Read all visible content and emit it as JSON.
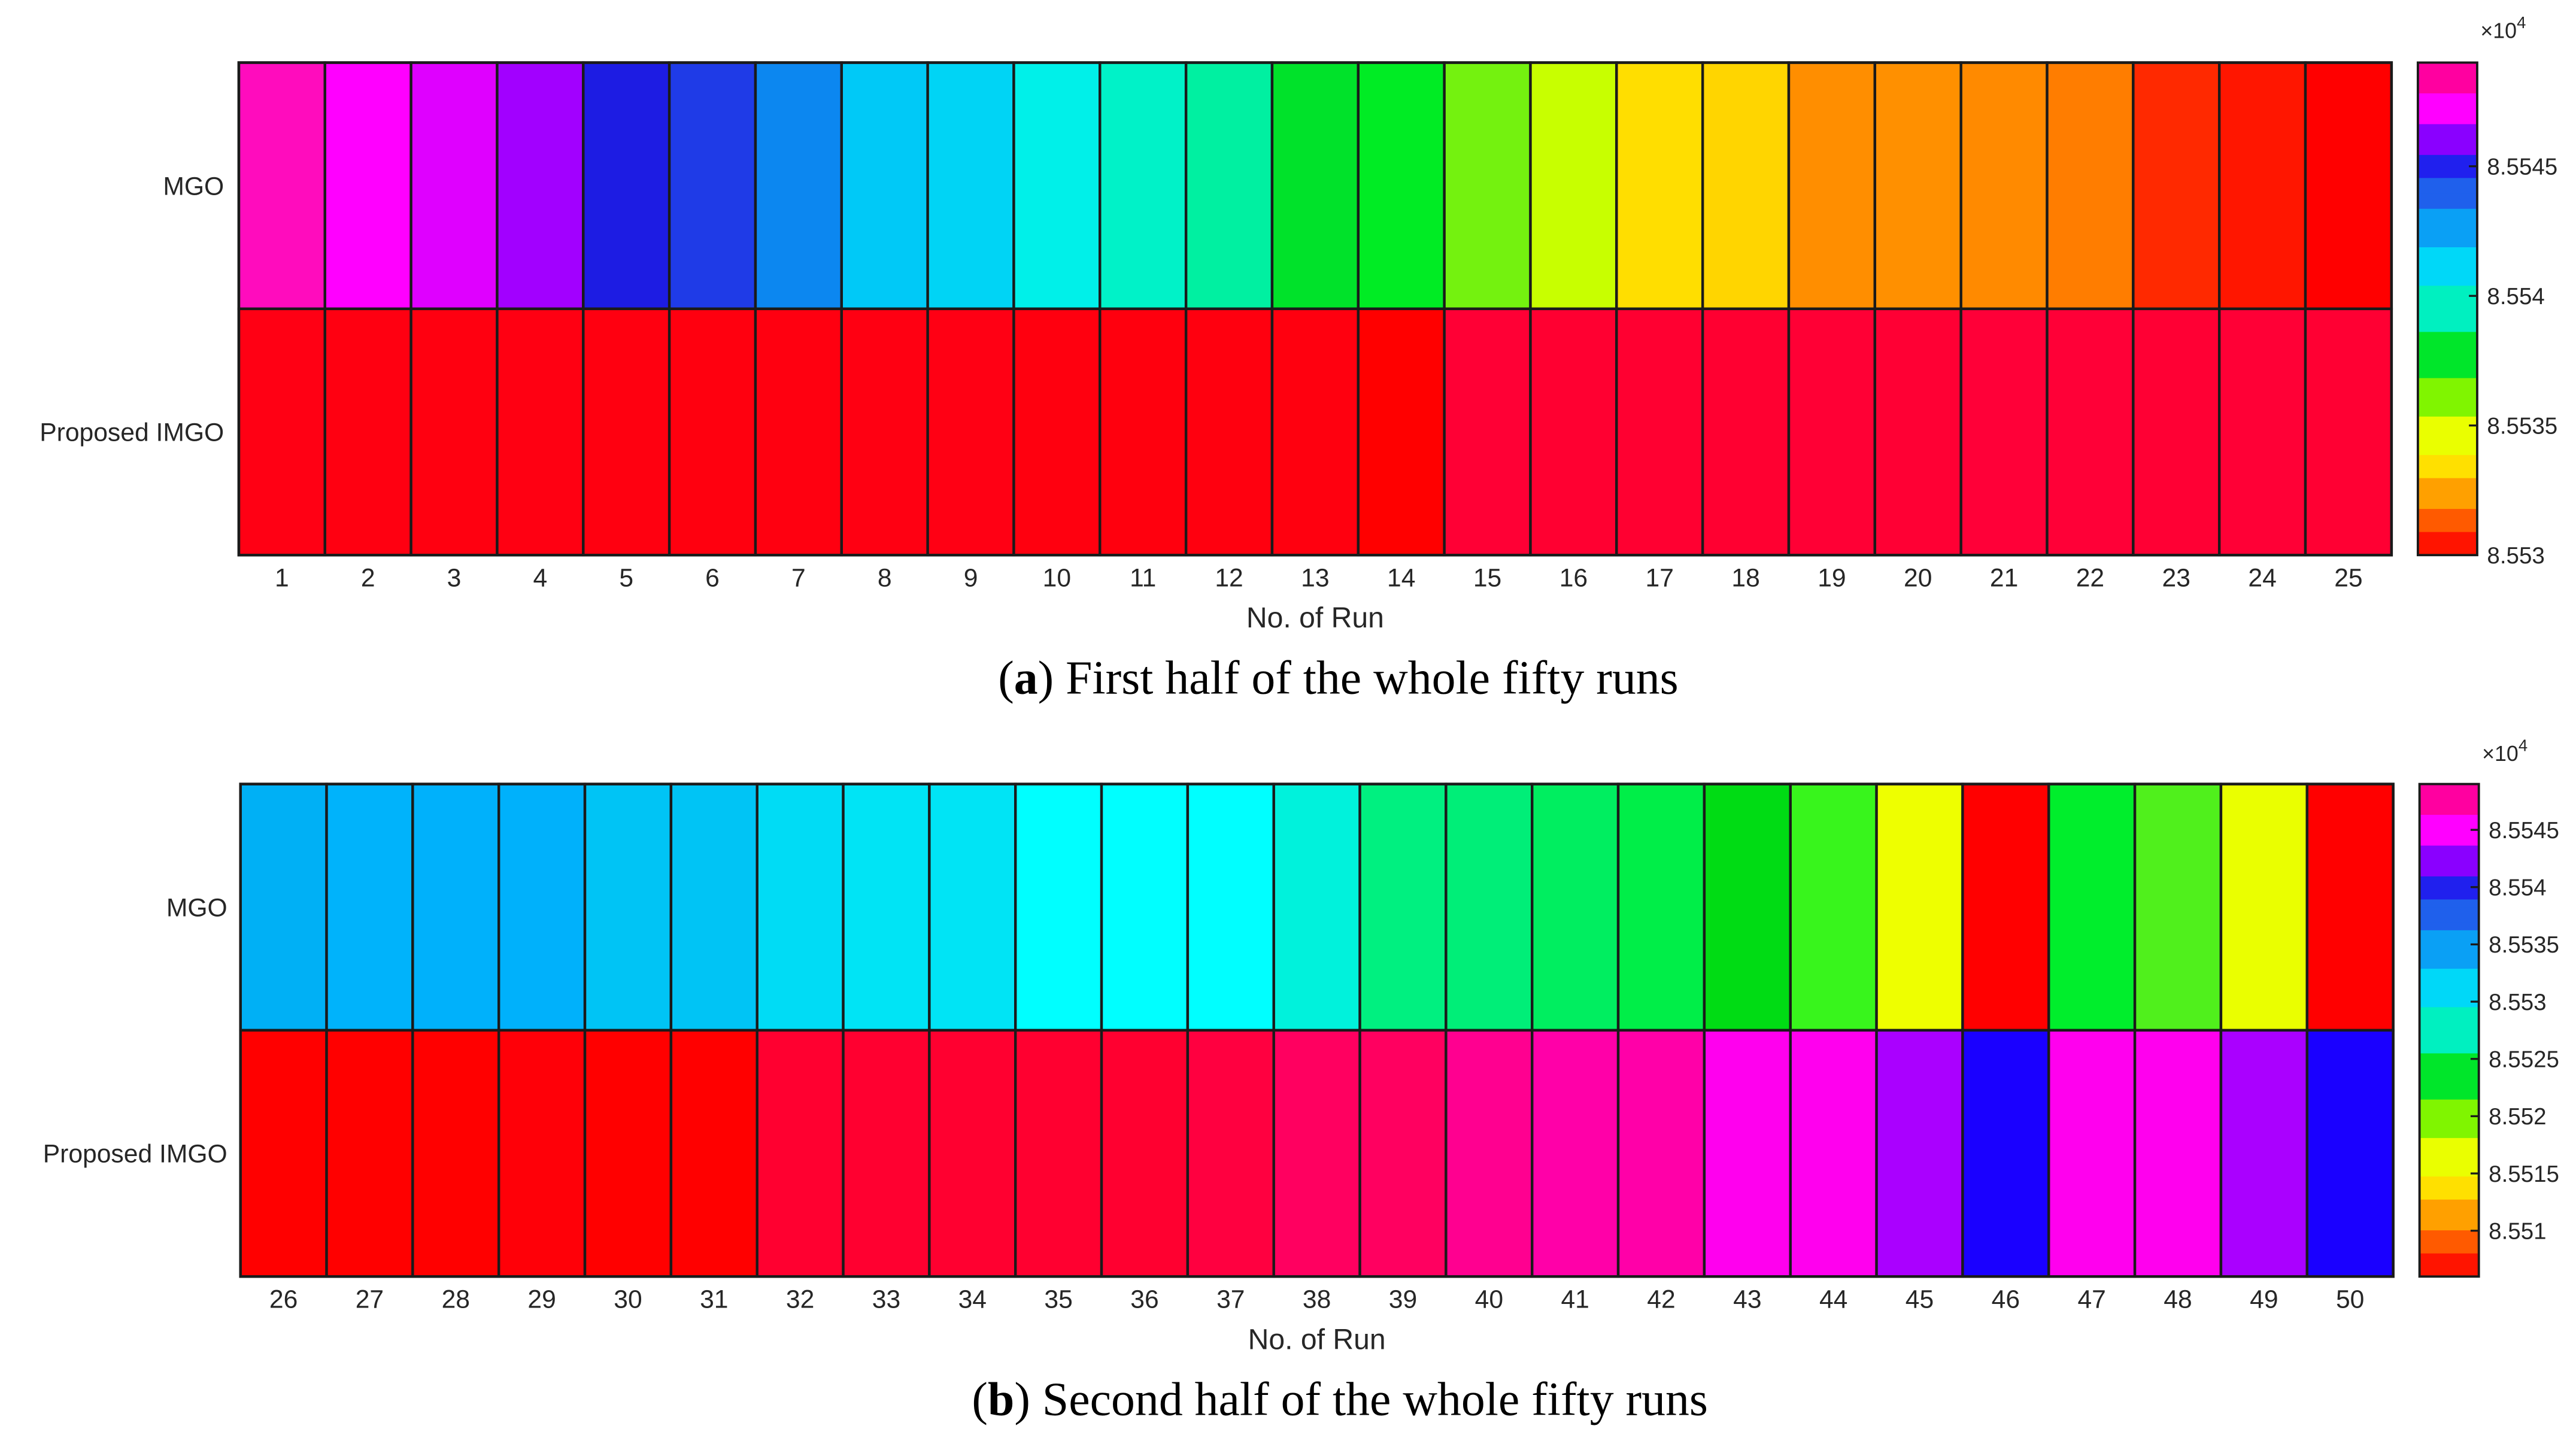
{
  "chart_data": [
    {
      "type": "heatmap",
      "caption_letter": "a",
      "caption_text": ") First half of the whole fifty runs",
      "caption_open": "(",
      "xlabel": "No. of Run",
      "rows": [
        "MGO",
        "Proposed IMGO"
      ],
      "runs": [
        1,
        2,
        3,
        4,
        5,
        6,
        7,
        8,
        9,
        10,
        11,
        12,
        13,
        14,
        15,
        16,
        17,
        18,
        19,
        20,
        21,
        22,
        23,
        24,
        25
      ],
      "colors": {
        "MGO": [
          "#ff0cbd",
          "#ff00ff",
          "#df00ff",
          "#a200ff",
          "#1d1ce3",
          "#1f3be7",
          "#0c87f0",
          "#00c9f7",
          "#00d4f5",
          "#00f0e9",
          "#00f2c8",
          "#00f0a1",
          "#00e22a",
          "#00ec24",
          "#74f20f",
          "#c8ff00",
          "#ffde00",
          "#ffd500",
          "#ff8e00",
          "#ff9000",
          "#ff8a00",
          "#ff7d00",
          "#ff2900",
          "#ff1600",
          "#ff0000"
        ],
        "Proposed IMGO": [
          "#ff0014",
          "#ff0011",
          "#ff0010",
          "#ff0012",
          "#ff0010",
          "#ff000f",
          "#ff0010",
          "#ff0012",
          "#ff0014",
          "#ff000f",
          "#ff000e",
          "#ff000f",
          "#ff000f",
          "#ff0000",
          "#ff0035",
          "#ff0031",
          "#ff0031",
          "#ff0031",
          "#ff0035",
          "#ff0034",
          "#ff0038",
          "#ff0037",
          "#ff0034",
          "#ff0036",
          "#ff0033"
        ]
      },
      "colorbar": {
        "exponent_label": "×10",
        "exponent_power": "4",
        "range": [
          8.553,
          8.5549
        ],
        "ticks": [
          "8.5545",
          "8.554",
          "8.5535",
          "8.553"
        ],
        "tick_values": [
          8.5545,
          8.554,
          8.5535,
          8.553
        ]
      }
    },
    {
      "type": "heatmap",
      "caption_letter": "b",
      "caption_text": ") Second half of the whole fifty runs",
      "caption_open": "(",
      "xlabel": "No. of Run",
      "rows": [
        "MGO",
        "Proposed IMGO"
      ],
      "runs": [
        26,
        27,
        28,
        29,
        30,
        31,
        32,
        33,
        34,
        35,
        36,
        37,
        38,
        39,
        40,
        41,
        42,
        43,
        44,
        45,
        46,
        47,
        48,
        49,
        50
      ],
      "colors": {
        "MGO": [
          "#00b0f5",
          "#00b3fb",
          "#00b1fb",
          "#00b1fb",
          "#00c4f5",
          "#00c4f5",
          "#00dcf5",
          "#00e4f5",
          "#00e4f5",
          "#00ffff",
          "#00ffff",
          "#00ffff",
          "#00f2dc",
          "#00f080",
          "#00ee78",
          "#00ee60",
          "#00ee48",
          "#00dc14",
          "#38f51c",
          "#eeff00",
          "#ff0000",
          "#00ee2c",
          "#50f01c",
          "#eaff00",
          "#ff0000"
        ],
        "Proposed IMGO": [
          "#ff0000",
          "#ff0000",
          "#ff0000",
          "#ff0008",
          "#ff0000",
          "#ff0000",
          "#ff0030",
          "#ff0030",
          "#ff0030",
          "#ff0030",
          "#ff0030",
          "#ff0040",
          "#ff0060",
          "#ff0060",
          "#ff0090",
          "#ff00a8",
          "#ff00a8",
          "#ff00ee",
          "#ff00ee",
          "#aa00ff",
          "#1a00ff",
          "#ff00ee",
          "#ff00ee",
          "#aa00ff",
          "#1a00ff"
        ]
      },
      "colorbar": {
        "exponent_label": "×10",
        "exponent_power": "4",
        "range": [
          8.5506,
          8.5549
        ],
        "ticks": [
          "8.5545",
          "8.554",
          "8.5535",
          "8.553",
          "8.5525",
          "8.552",
          "8.5515",
          "8.551"
        ],
        "tick_values": [
          8.5545,
          8.554,
          8.5535,
          8.553,
          8.5525,
          8.552,
          8.5515,
          8.551
        ]
      }
    }
  ]
}
